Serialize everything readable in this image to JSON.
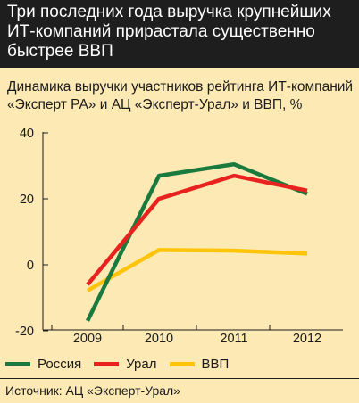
{
  "header": {
    "title": "Три последних года  выручка крупнейших ИТ-компаний прирастала существенно быстрее ВВП"
  },
  "subtitle": "Динамика выручки участников рейтинга ИТ-компаний «Эксперт РА» и АЦ «Эксперт-Урал» и ВВП, %",
  "source": "Источник: АЦ «Эксперт-Урал»",
  "chart_data": {
    "type": "line",
    "categories": [
      "2009",
      "2010",
      "2011",
      "2012"
    ],
    "series": [
      {
        "name": "Россия",
        "color": "#1a7a3e",
        "values": [
          -17,
          27,
          30.5,
          21.5
        ]
      },
      {
        "name": "Урал",
        "color": "#e8231f",
        "values": [
          -6,
          20,
          27,
          22.5
        ]
      },
      {
        "name": "ВВП",
        "color": "#fdc40a",
        "values": [
          -7.8,
          4.5,
          4.3,
          3.4
        ]
      }
    ],
    "yticks": [
      -20,
      0,
      20,
      40
    ],
    "ylim": [
      -20,
      40
    ],
    "grid": false,
    "legend": "bottom"
  }
}
